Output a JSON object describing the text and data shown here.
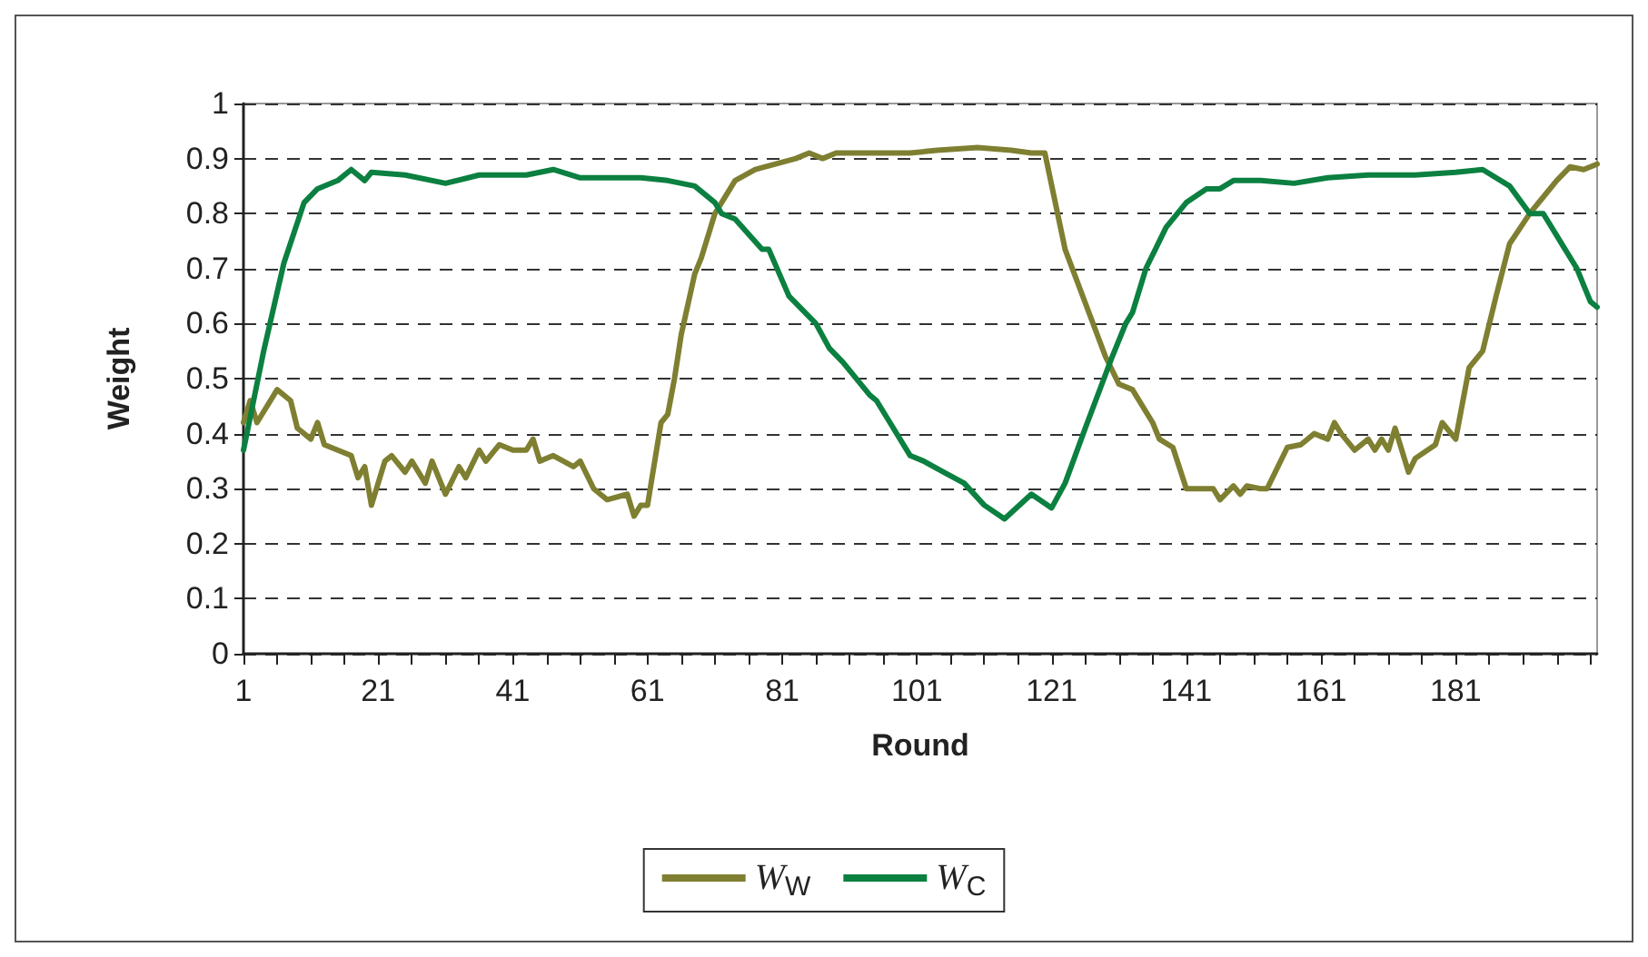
{
  "chart_data": {
    "type": "line",
    "xlabel": "Round",
    "ylabel": "Weight",
    "xlim": [
      1,
      202
    ],
    "ylim": [
      0,
      1
    ],
    "xticks": [
      1,
      {
        "value": 6,
        "label": null
      },
      {
        "value": 11,
        "label": null
      },
      {
        "value": 16,
        "label": null
      },
      21,
      {
        "value": 26,
        "label": null
      },
      {
        "value": 31,
        "label": null
      },
      {
        "value": 36,
        "label": null
      },
      41,
      {
        "value": 46,
        "label": null
      },
      {
        "value": 51,
        "label": null
      },
      {
        "value": 56,
        "label": null
      },
      61,
      {
        "value": 66,
        "label": null
      },
      {
        "value": 71,
        "label": null
      },
      {
        "value": 76,
        "label": null
      },
      81,
      {
        "value": 86,
        "label": null
      },
      {
        "value": 91,
        "label": null
      },
      {
        "value": 96,
        "label": null
      },
      101,
      {
        "value": 106,
        "label": null
      },
      {
        "value": 111,
        "label": null
      },
      {
        "value": 116,
        "label": null
      },
      121,
      {
        "value": 126,
        "label": null
      },
      {
        "value": 131,
        "label": null
      },
      {
        "value": 136,
        "label": null
      },
      141,
      {
        "value": 146,
        "label": null
      },
      {
        "value": 151,
        "label": null
      },
      {
        "value": 156,
        "label": null
      },
      161,
      {
        "value": 166,
        "label": null
      },
      {
        "value": 171,
        "label": null
      },
      {
        "value": 176,
        "label": null
      },
      181,
      {
        "value": 186,
        "label": null
      },
      {
        "value": 191,
        "label": null
      },
      {
        "value": 196,
        "label": null
      },
      {
        "value": 201,
        "label": null
      }
    ],
    "yticks": [
      0,
      0.1,
      0.2,
      0.3,
      0.4,
      0.5,
      0.6,
      0.7,
      0.8,
      0.9,
      1
    ],
    "grid": "y",
    "legend": "bottom",
    "marker": "none",
    "line_style": "solid",
    "series": [
      {
        "name": "W$_{W}$",
        "color": "#7f7f32",
        "x": [
          1,
          2,
          3,
          6,
          8,
          9,
          11,
          12,
          13,
          14,
          17,
          18,
          19,
          20,
          22,
          23,
          25,
          26,
          28,
          29,
          31,
          33,
          34,
          36,
          37,
          39,
          41,
          43,
          44,
          45,
          47,
          50,
          51,
          53,
          55,
          58,
          59,
          60,
          61,
          63,
          64,
          65,
          66,
          68,
          69,
          71,
          74,
          77,
          80,
          83,
          85,
          87,
          89,
          94,
          100,
          104,
          110,
          115,
          118,
          120,
          123,
          125,
          129,
          131,
          133,
          136,
          137,
          139,
          141,
          145,
          146,
          148,
          149,
          150,
          152,
          153,
          156,
          158,
          160,
          162,
          163,
          164,
          166,
          168,
          169,
          170,
          171,
          172,
          174,
          175,
          178,
          179,
          181,
          183,
          185,
          187,
          189,
          192,
          194,
          196,
          198,
          200,
          202
        ],
        "values": [
          0.42,
          0.46,
          0.42,
          0.48,
          0.46,
          0.41,
          0.39,
          0.42,
          0.38,
          0.375,
          0.36,
          0.32,
          0.34,
          0.27,
          0.35,
          0.36,
          0.33,
          0.35,
          0.31,
          0.35,
          0.29,
          0.34,
          0.32,
          0.37,
          0.35,
          0.38,
          0.37,
          0.37,
          0.39,
          0.35,
          0.36,
          0.34,
          0.35,
          0.3,
          0.28,
          0.29,
          0.25,
          0.27,
          0.27,
          0.42,
          0.435,
          0.5,
          0.58,
          0.69,
          0.72,
          0.8,
          0.86,
          0.88,
          0.89,
          0.9,
          0.91,
          0.9,
          0.91,
          0.91,
          0.91,
          0.915,
          0.92,
          0.915,
          0.91,
          0.91,
          0.735,
          0.67,
          0.54,
          0.49,
          0.48,
          0.42,
          0.39,
          0.375,
          0.3,
          0.3,
          0.28,
          0.305,
          0.29,
          0.305,
          0.3,
          0.3,
          0.375,
          0.38,
          0.4,
          0.39,
          0.42,
          0.4,
          0.37,
          0.39,
          0.37,
          0.39,
          0.37,
          0.41,
          0.33,
          0.355,
          0.38,
          0.42,
          0.39,
          0.52,
          0.55,
          0.65,
          0.745,
          0.8,
          0.83,
          0.86,
          0.885,
          0.88,
          0.89
        ]
      },
      {
        "name": "W$_{C}$",
        "color": "#0b8040",
        "x": [
          1,
          4,
          7,
          10,
          12,
          15,
          17,
          19,
          20,
          25,
          31,
          36,
          43,
          47,
          51,
          60,
          64,
          68,
          71,
          72,
          74,
          78,
          79,
          82,
          86,
          88,
          90,
          94,
          95,
          97,
          100,
          102,
          105,
          108,
          111,
          114,
          118,
          121,
          123,
          126,
          130,
          132,
          133,
          135,
          138,
          141,
          144,
          146,
          148,
          152,
          157,
          162,
          168,
          175,
          181,
          185,
          189,
          192,
          194,
          197,
          199,
          201,
          202
        ],
        "values": [
          0.37,
          0.55,
          0.71,
          0.82,
          0.845,
          0.86,
          0.88,
          0.86,
          0.875,
          0.87,
          0.855,
          0.87,
          0.87,
          0.88,
          0.865,
          0.865,
          0.86,
          0.85,
          0.82,
          0.8,
          0.79,
          0.735,
          0.735,
          0.65,
          0.6,
          0.555,
          0.53,
          0.47,
          0.46,
          0.42,
          0.36,
          0.35,
          0.33,
          0.31,
          0.27,
          0.245,
          0.29,
          0.265,
          0.31,
          0.41,
          0.54,
          0.6,
          0.62,
          0.7,
          0.775,
          0.82,
          0.845,
          0.845,
          0.86,
          0.86,
          0.855,
          0.865,
          0.87,
          0.87,
          0.875,
          0.88,
          0.85,
          0.8,
          0.8,
          0.74,
          0.7,
          0.64,
          0.63
        ]
      }
    ]
  }
}
